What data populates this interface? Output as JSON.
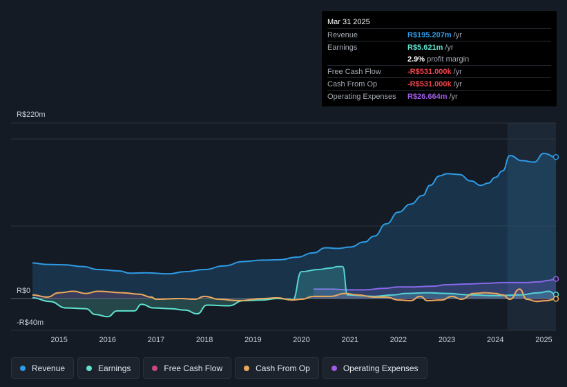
{
  "tooltip": {
    "date": "Mar 31 2025",
    "rows": [
      {
        "label": "Revenue",
        "value": "R$195.207m",
        "unit": "/yr",
        "color": "#2e9be6"
      },
      {
        "label": "Earnings",
        "value": "R$5.621m",
        "unit": "/yr",
        "color": "#5ee3cf"
      },
      {
        "label": "",
        "value": "2.9%",
        "unit": "profit margin",
        "color": "#ffffff"
      },
      {
        "label": "Free Cash Flow",
        "value": "-R$531.000k",
        "unit": "/yr",
        "color": "#f2434d"
      },
      {
        "label": "Cash From Op",
        "value": "-R$531.000k",
        "unit": "/yr",
        "color": "#f2434d"
      },
      {
        "label": "Operating Expenses",
        "value": "R$26.664m",
        "unit": "/yr",
        "color": "#9f5ce8"
      }
    ]
  },
  "legend": [
    {
      "label": "Revenue",
      "color": "#2e9be6"
    },
    {
      "label": "Earnings",
      "color": "#5ee3cf"
    },
    {
      "label": "Free Cash Flow",
      "color": "#c94a7a"
    },
    {
      "label": "Cash From Op",
      "color": "#e8a959"
    },
    {
      "label": "Operating Expenses",
      "color": "#9f5ce8"
    }
  ],
  "chart_data": {
    "type": "line",
    "y_unit": "R$ millions",
    "ylim": [
      -40,
      220
    ],
    "y_tick_labels": [
      {
        "value": 220,
        "label": "R$220m"
      },
      {
        "value": 0,
        "label": "R$0"
      },
      {
        "value": -40,
        "label": "-R$40m"
      }
    ],
    "x_tick_labels": [
      "2015",
      "2016",
      "2017",
      "2018",
      "2019",
      "2020",
      "2021",
      "2022",
      "2023",
      "2024",
      "2025"
    ],
    "x_tick_values": [
      2015,
      2016,
      2017,
      2018,
      2019,
      2020,
      2021,
      2022,
      2023,
      2024,
      2025
    ],
    "xlim": [
      2014.45,
      2025.25
    ],
    "forecast_shade_from": 2024.25,
    "series": [
      {
        "name": "Revenue",
        "color": "#2e9be6",
        "area": true,
        "points": [
          [
            2014.45,
            49
          ],
          [
            2014.75,
            47
          ],
          [
            2015.1,
            46.5
          ],
          [
            2015.5,
            44
          ],
          [
            2015.8,
            40
          ],
          [
            2016.25,
            38
          ],
          [
            2016.45,
            35
          ],
          [
            2016.8,
            35.5
          ],
          [
            2017.25,
            34
          ],
          [
            2017.6,
            37
          ],
          [
            2018.0,
            40
          ],
          [
            2018.4,
            45
          ],
          [
            2018.8,
            51
          ],
          [
            2019.2,
            53
          ],
          [
            2019.55,
            53.5
          ],
          [
            2019.9,
            57
          ],
          [
            2020.25,
            63
          ],
          [
            2020.5,
            70
          ],
          [
            2020.75,
            69
          ],
          [
            2021.0,
            71
          ],
          [
            2021.3,
            78
          ],
          [
            2021.5,
            86
          ],
          [
            2021.75,
            103
          ],
          [
            2022.0,
            119
          ],
          [
            2022.25,
            130
          ],
          [
            2022.5,
            142
          ],
          [
            2022.65,
            156
          ],
          [
            2022.85,
            169
          ],
          [
            2023.0,
            172
          ],
          [
            2023.25,
            171
          ],
          [
            2023.5,
            162
          ],
          [
            2023.7,
            156
          ],
          [
            2023.85,
            159
          ],
          [
            2024.0,
            167
          ],
          [
            2024.15,
            176
          ],
          [
            2024.3,
            197
          ],
          [
            2024.55,
            190
          ],
          [
            2024.8,
            188
          ],
          [
            2025.0,
            200
          ],
          [
            2025.25,
            195
          ]
        ]
      },
      {
        "name": "Earnings",
        "color": "#5ee3cf",
        "area": true,
        "points": [
          [
            2014.45,
            1
          ],
          [
            2014.8,
            -4
          ],
          [
            2015.15,
            -13
          ],
          [
            2015.55,
            -14
          ],
          [
            2015.75,
            -22
          ],
          [
            2016.0,
            -25
          ],
          [
            2016.2,
            -17
          ],
          [
            2016.55,
            -17
          ],
          [
            2016.7,
            -8
          ],
          [
            2016.95,
            -13
          ],
          [
            2017.3,
            -14
          ],
          [
            2017.6,
            -16
          ],
          [
            2017.85,
            -21
          ],
          [
            2018.05,
            -9
          ],
          [
            2018.5,
            -10
          ],
          [
            2018.8,
            -3
          ],
          [
            2019.2,
            -2
          ],
          [
            2019.5,
            0
          ],
          [
            2019.75,
            -1
          ],
          [
            2019.82,
            -2
          ],
          [
            2020.0,
            37
          ],
          [
            2020.35,
            40
          ],
          [
            2020.6,
            42
          ],
          [
            2020.75,
            44
          ],
          [
            2020.85,
            44
          ],
          [
            2020.95,
            5
          ],
          [
            2021.5,
            3
          ],
          [
            2021.9,
            5
          ],
          [
            2022.15,
            7
          ],
          [
            2022.6,
            8
          ],
          [
            2023.0,
            7
          ],
          [
            2023.5,
            5
          ],
          [
            2024.0,
            4
          ],
          [
            2024.5,
            5
          ],
          [
            2024.9,
            8
          ],
          [
            2025.1,
            10
          ],
          [
            2025.25,
            5.6
          ]
        ]
      },
      {
        "name": "Free Cash Flow",
        "color": "#c94a7a",
        "area": true,
        "points": [
          [
            2014.45,
            5
          ],
          [
            2014.75,
            2
          ],
          [
            2015.0,
            8
          ],
          [
            2015.3,
            10
          ],
          [
            2015.55,
            7
          ],
          [
            2015.8,
            10
          ],
          [
            2016.3,
            8
          ],
          [
            2016.65,
            6
          ],
          [
            2016.9,
            2
          ],
          [
            2017.0,
            -1
          ],
          [
            2017.5,
            0
          ],
          [
            2017.8,
            -1
          ],
          [
            2018.0,
            3
          ],
          [
            2018.3,
            -1
          ],
          [
            2018.7,
            -3
          ],
          [
            2019.2,
            0
          ],
          [
            2019.5,
            1
          ],
          [
            2019.8,
            -2
          ],
          [
            2020.0,
            -1
          ],
          [
            2020.25,
            3
          ],
          [
            2020.6,
            3
          ],
          [
            2020.9,
            7
          ],
          [
            2021.15,
            5
          ],
          [
            2021.5,
            2
          ],
          [
            2021.75,
            2
          ],
          [
            2022.0,
            -2
          ],
          [
            2022.25,
            -3
          ],
          [
            2022.45,
            3
          ],
          [
            2022.6,
            -3
          ],
          [
            2022.9,
            -2
          ],
          [
            2023.1,
            3
          ],
          [
            2023.3,
            -1
          ],
          [
            2023.55,
            7
          ],
          [
            2023.8,
            8
          ],
          [
            2024.0,
            7
          ],
          [
            2024.15,
            5
          ],
          [
            2024.3,
            -1
          ],
          [
            2024.5,
            13
          ],
          [
            2024.65,
            -1
          ],
          [
            2024.85,
            -4
          ],
          [
            2025.05,
            -3
          ],
          [
            2025.25,
            -0.5
          ]
        ]
      },
      {
        "name": "Cash From Op",
        "color": "#e8a959",
        "area": false,
        "points": [
          [
            2014.45,
            5
          ],
          [
            2014.75,
            2
          ],
          [
            2015.0,
            8
          ],
          [
            2015.3,
            10
          ],
          [
            2015.55,
            7
          ],
          [
            2015.8,
            10
          ],
          [
            2016.3,
            8
          ],
          [
            2016.65,
            6
          ],
          [
            2016.9,
            2
          ],
          [
            2017.0,
            -1
          ],
          [
            2017.5,
            0
          ],
          [
            2017.8,
            -1
          ],
          [
            2018.0,
            3
          ],
          [
            2018.3,
            -1
          ],
          [
            2018.7,
            -3
          ],
          [
            2019.2,
            0
          ],
          [
            2019.5,
            1
          ],
          [
            2019.8,
            -2
          ],
          [
            2020.0,
            -1
          ],
          [
            2020.25,
            3
          ],
          [
            2020.6,
            3
          ],
          [
            2020.9,
            7
          ],
          [
            2021.15,
            5
          ],
          [
            2021.5,
            2
          ],
          [
            2021.75,
            2
          ],
          [
            2022.0,
            -2
          ],
          [
            2022.25,
            -3
          ],
          [
            2022.45,
            3
          ],
          [
            2022.6,
            -3
          ],
          [
            2022.9,
            -2
          ],
          [
            2023.1,
            3
          ],
          [
            2023.3,
            -1
          ],
          [
            2023.55,
            7
          ],
          [
            2023.8,
            8
          ],
          [
            2024.0,
            7
          ],
          [
            2024.15,
            5
          ],
          [
            2024.3,
            -1
          ],
          [
            2024.5,
            13
          ],
          [
            2024.65,
            -1
          ],
          [
            2024.85,
            -4
          ],
          [
            2025.05,
            -3
          ],
          [
            2025.25,
            -0.5
          ]
        ]
      },
      {
        "name": "Operating Expenses",
        "color": "#9f5ce8",
        "area": true,
        "points": [
          [
            2020.25,
            13
          ],
          [
            2020.6,
            13
          ],
          [
            2020.95,
            12
          ],
          [
            2021.3,
            12
          ],
          [
            2021.7,
            14
          ],
          [
            2022.0,
            16
          ],
          [
            2022.3,
            16
          ],
          [
            2022.7,
            17
          ],
          [
            2023.0,
            19
          ],
          [
            2023.4,
            20
          ],
          [
            2023.8,
            21
          ],
          [
            2024.2,
            22
          ],
          [
            2024.6,
            22
          ],
          [
            2024.9,
            23
          ],
          [
            2025.1,
            25
          ],
          [
            2025.25,
            27
          ]
        ]
      }
    ]
  }
}
